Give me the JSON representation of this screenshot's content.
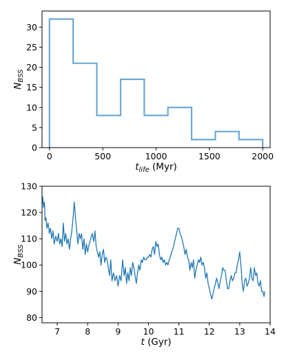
{
  "chart_data": [
    {
      "type": "histogram",
      "xlabel": {
        "main": "t",
        "sub": "life",
        "unit": " (Myr)"
      },
      "ylabel": {
        "main": "N",
        "sub": "BSS"
      },
      "xlim": [
        -70,
        2070
      ],
      "ylim": [
        0,
        34
      ],
      "xticks": [
        0,
        500,
        1000,
        1500,
        2000
      ],
      "yticks": [
        0,
        5,
        10,
        15,
        20,
        25,
        30
      ],
      "color": "#6aa8d2",
      "bin_edges": [
        0,
        222,
        444,
        667,
        889,
        1111,
        1333,
        1556,
        1778,
        2000
      ],
      "counts": [
        32,
        21,
        8,
        17,
        8,
        10,
        2,
        4,
        2
      ]
    },
    {
      "type": "line",
      "xlabel": {
        "main": "t",
        "unit": " (Gyr)"
      },
      "ylabel": {
        "main": "N",
        "sub": "BSS"
      },
      "xlim": [
        6.5,
        14
      ],
      "ylim": [
        78,
        130
      ],
      "xticks": [
        7,
        8,
        9,
        10,
        11,
        12,
        13,
        14
      ],
      "yticks": [
        80,
        90,
        100,
        110,
        120,
        130
      ],
      "color": "#1f77b4",
      "points": [
        [
          6.5,
          123
        ],
        [
          6.52,
          126
        ],
        [
          6.55,
          122
        ],
        [
          6.58,
          124
        ],
        [
          6.6,
          117
        ],
        [
          6.63,
          118
        ],
        [
          6.66,
          114
        ],
        [
          6.7,
          116
        ],
        [
          6.74,
          112
        ],
        [
          6.78,
          114
        ],
        [
          6.82,
          110
        ],
        [
          6.86,
          113
        ],
        [
          6.9,
          108
        ],
        [
          6.95,
          111
        ],
        [
          7.0,
          109
        ],
        [
          7.04,
          112
        ],
        [
          7.08,
          108
        ],
        [
          7.12,
          110
        ],
        [
          7.16,
          107
        ],
        [
          7.2,
          116
        ],
        [
          7.24,
          109
        ],
        [
          7.28,
          112
        ],
        [
          7.32,
          108
        ],
        [
          7.36,
          110
        ],
        [
          7.4,
          106
        ],
        [
          7.44,
          110
        ],
        [
          7.48,
          113
        ],
        [
          7.52,
          118
        ],
        [
          7.56,
          124
        ],
        [
          7.6,
          118
        ],
        [
          7.64,
          113
        ],
        [
          7.68,
          108
        ],
        [
          7.72,
          112
        ],
        [
          7.76,
          110
        ],
        [
          7.8,
          112
        ],
        [
          7.84,
          106
        ],
        [
          7.88,
          110
        ],
        [
          7.92,
          104
        ],
        [
          7.96,
          108
        ],
        [
          8.0,
          105
        ],
        [
          8.05,
          108
        ],
        [
          8.1,
          110
        ],
        [
          8.15,
          112
        ],
        [
          8.2,
          109
        ],
        [
          8.24,
          113
        ],
        [
          8.28,
          107
        ],
        [
          8.32,
          105
        ],
        [
          8.36,
          103
        ],
        [
          8.4,
          105
        ],
        [
          8.44,
          100
        ],
        [
          8.48,
          104
        ],
        [
          8.52,
          106
        ],
        [
          8.56,
          101
        ],
        [
          8.6,
          103
        ],
        [
          8.64,
          102
        ],
        [
          8.68,
          99
        ],
        [
          8.72,
          96
        ],
        [
          8.76,
          102
        ],
        [
          8.8,
          94
        ],
        [
          8.85,
          97
        ],
        [
          8.9,
          94
        ],
        [
          8.95,
          96
        ],
        [
          9.0,
          92
        ],
        [
          9.05,
          96
        ],
        [
          9.1,
          94
        ],
        [
          9.15,
          102
        ],
        [
          9.2,
          96
        ],
        [
          9.24,
          99
        ],
        [
          9.28,
          93
        ],
        [
          9.32,
          97
        ],
        [
          9.36,
          94
        ],
        [
          9.4,
          99
        ],
        [
          9.44,
          96
        ],
        [
          9.48,
          101
        ],
        [
          9.52,
          99
        ],
        [
          9.56,
          96
        ],
        [
          9.6,
          93
        ],
        [
          9.64,
          97
        ],
        [
          9.68,
          100
        ],
        [
          9.72,
          98
        ],
        [
          9.76,
          102
        ],
        [
          9.8,
          101
        ],
        [
          9.84,
          103
        ],
        [
          9.88,
          102
        ],
        [
          9.92,
          102
        ],
        [
          9.96,
          103
        ],
        [
          10.0,
          103
        ],
        [
          10.04,
          104
        ],
        [
          10.08,
          103
        ],
        [
          10.12,
          106
        ],
        [
          10.16,
          107
        ],
        [
          10.2,
          104
        ],
        [
          10.24,
          109
        ],
        [
          10.28,
          107
        ],
        [
          10.32,
          108
        ],
        [
          10.36,
          104
        ],
        [
          10.4,
          102
        ],
        [
          10.44,
          103
        ],
        [
          10.48,
          101
        ],
        [
          10.52,
          102
        ],
        [
          10.56,
          100
        ],
        [
          10.6,
          101
        ],
        [
          10.64,
          100
        ],
        [
          10.68,
          102
        ],
        [
          10.72,
          103
        ],
        [
          10.76,
          105
        ],
        [
          10.8,
          106
        ],
        [
          10.84,
          108
        ],
        [
          10.88,
          110
        ],
        [
          10.92,
          112
        ],
        [
          10.96,
          114
        ],
        [
          11.0,
          114
        ],
        [
          11.04,
          112
        ],
        [
          11.08,
          111
        ],
        [
          11.12,
          109
        ],
        [
          11.16,
          107
        ],
        [
          11.2,
          104
        ],
        [
          11.24,
          106
        ],
        [
          11.28,
          103
        ],
        [
          11.32,
          102
        ],
        [
          11.36,
          98
        ],
        [
          11.4,
          101
        ],
        [
          11.44,
          99
        ],
        [
          11.48,
          102
        ],
        [
          11.52,
          95
        ],
        [
          11.56,
          98
        ],
        [
          11.6,
          100
        ],
        [
          11.64,
          102
        ],
        [
          11.68,
          101
        ],
        [
          11.72,
          103
        ],
        [
          11.76,
          100
        ],
        [
          11.8,
          101
        ],
        [
          11.84,
          99
        ],
        [
          11.88,
          95
        ],
        [
          11.92,
          97
        ],
        [
          11.96,
          93
        ],
        [
          12.0,
          91
        ],
        [
          12.04,
          89
        ],
        [
          12.08,
          87
        ],
        [
          12.12,
          89
        ],
        [
          12.16,
          91
        ],
        [
          12.2,
          93
        ],
        [
          12.24,
          95
        ],
        [
          12.28,
          93
        ],
        [
          12.32,
          91
        ],
        [
          12.36,
          94
        ],
        [
          12.4,
          96
        ],
        [
          12.44,
          99
        ],
        [
          12.48,
          98
        ],
        [
          12.52,
          98
        ],
        [
          12.56,
          94
        ],
        [
          12.6,
          91
        ],
        [
          12.64,
          91
        ],
        [
          12.68,
          94
        ],
        [
          12.72,
          96
        ],
        [
          12.76,
          94
        ],
        [
          12.8,
          95
        ],
        [
          12.84,
          97
        ],
        [
          12.88,
          97
        ],
        [
          12.92,
          100
        ],
        [
          12.96,
          102
        ],
        [
          13.0,
          105
        ],
        [
          13.04,
          100
        ],
        [
          13.08,
          93
        ],
        [
          13.12,
          90
        ],
        [
          13.16,
          94
        ],
        [
          13.2,
          95
        ],
        [
          13.24,
          92
        ],
        [
          13.28,
          93
        ],
        [
          13.32,
          95
        ],
        [
          13.36,
          99
        ],
        [
          13.4,
          95
        ],
        [
          13.44,
          94
        ],
        [
          13.48,
          99
        ],
        [
          13.52,
          96
        ],
        [
          13.56,
          97
        ],
        [
          13.6,
          93
        ],
        [
          13.64,
          92
        ],
        [
          13.68,
          94
        ],
        [
          13.72,
          90
        ],
        [
          13.76,
          90
        ],
        [
          13.8,
          88
        ],
        [
          13.82,
          90
        ]
      ]
    }
  ]
}
